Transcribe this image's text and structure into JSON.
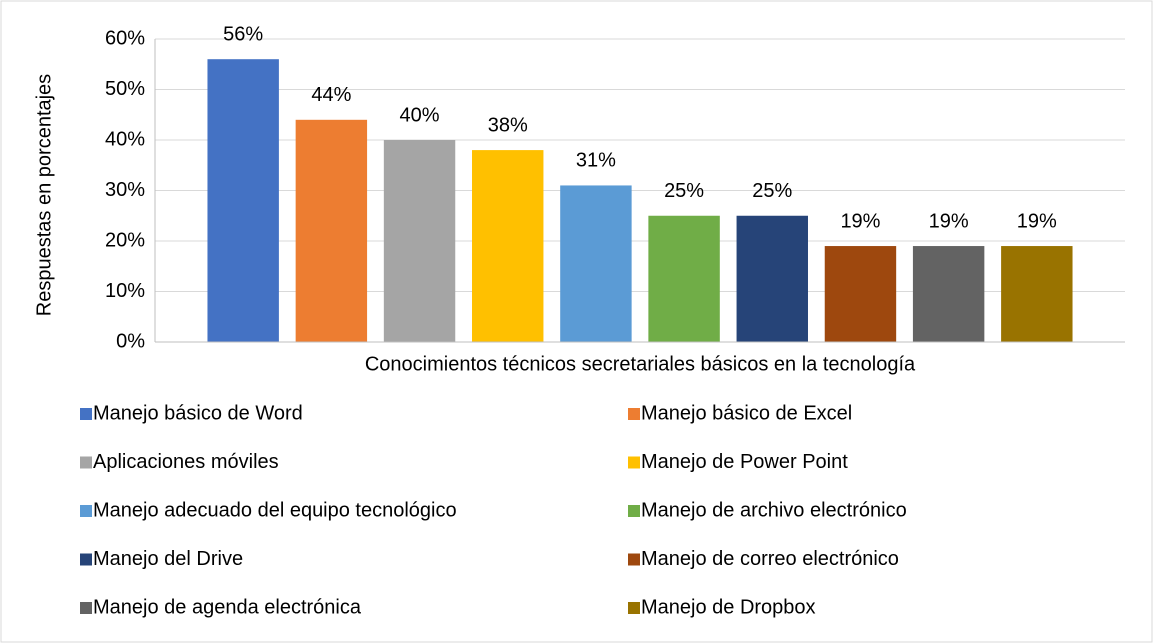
{
  "chart_data": {
    "type": "bar",
    "y_label": "Respuestas en porcentajes",
    "categories": [
      "Conocimientos técnicos secretariales básicos en la tecnología"
    ],
    "series": [
      {
        "name": "Manejo básico de Word",
        "color": "#4472c4",
        "values": [
          56
        ],
        "value_labels": [
          "56%"
        ]
      },
      {
        "name": "Manejo básico de Excel",
        "color": "#ed7d31",
        "values": [
          44
        ],
        "value_labels": [
          "44%"
        ]
      },
      {
        "name": "Aplicaciones móviles",
        "color": "#a5a5a5",
        "values": [
          40
        ],
        "value_labels": [
          "40%"
        ]
      },
      {
        "name": "Manejo de Power Point",
        "color": "#ffc000",
        "values": [
          38
        ],
        "value_labels": [
          "38%"
        ]
      },
      {
        "name": "Manejo adecuado del equipo tecnológico",
        "color": "#5b9bd5",
        "values": [
          31
        ],
        "value_labels": [
          "31%"
        ]
      },
      {
        "name": "Manejo de archivo electrónico",
        "color": "#70ad47",
        "values": [
          25
        ],
        "value_labels": [
          "25%"
        ]
      },
      {
        "name": "Manejo del Drive",
        "color": "#264478",
        "values": [
          25
        ],
        "value_labels": [
          "25%"
        ]
      },
      {
        "name": "Manejo de correo electrónico",
        "color": "#9e480e",
        "values": [
          19
        ],
        "value_labels": [
          "19%"
        ]
      },
      {
        "name": "Manejo de agenda electrónica",
        "color": "#636363",
        "values": [
          19
        ],
        "value_labels": [
          "19%"
        ]
      },
      {
        "name": "Manejo de Dropbox",
        "color": "#997300",
        "values": [
          19
        ],
        "value_labels": [
          "19%"
        ]
      }
    ],
    "ylim": [
      0,
      60
    ],
    "yticks": [
      {
        "value": 0,
        "label": "0%"
      },
      {
        "value": 10,
        "label": "10%"
      },
      {
        "value": 20,
        "label": "20%"
      },
      {
        "value": 30,
        "label": "30%"
      },
      {
        "value": 40,
        "label": "40%"
      },
      {
        "value": 50,
        "label": "50%"
      },
      {
        "value": 60,
        "label": "60%"
      }
    ],
    "grid": true,
    "legend": "bottom"
  }
}
